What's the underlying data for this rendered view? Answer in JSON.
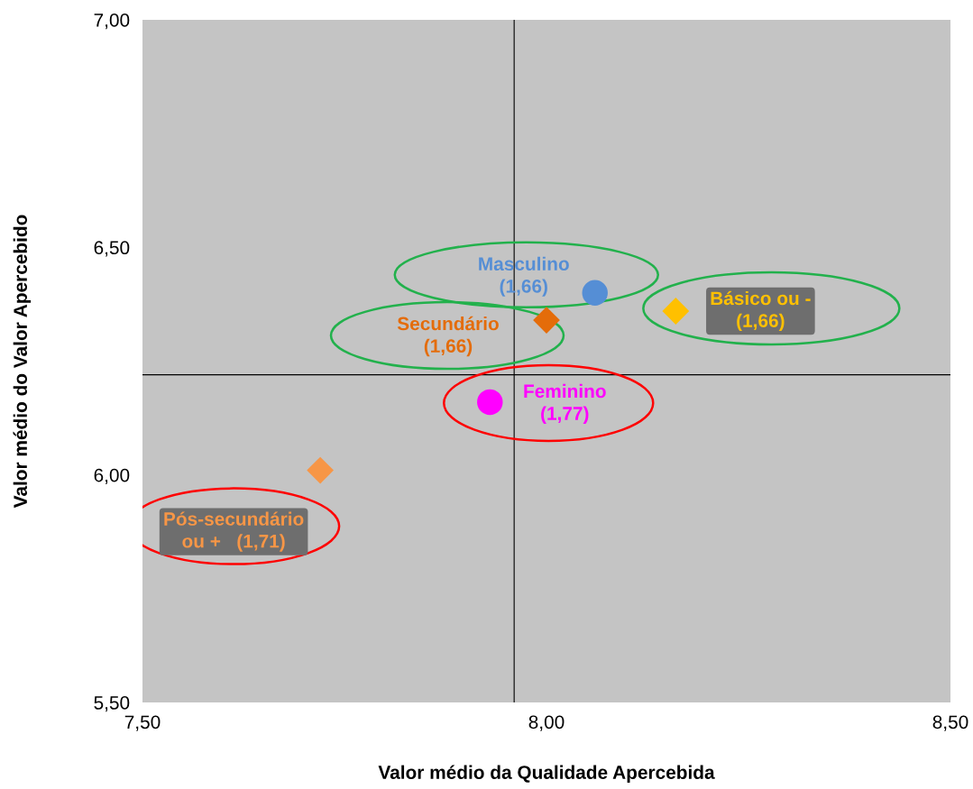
{
  "chart_data": {
    "type": "scatter",
    "xlabel": "Valor médio da Qualidade Apercebida",
    "ylabel": "Valor médio do Valor Apercebido",
    "xlim": [
      7.5,
      8.5
    ],
    "ylim": [
      5.5,
      7.0
    ],
    "xticks": [
      {
        "value": 7.5,
        "label": "7,50"
      },
      {
        "value": 8.0,
        "label": "8,00"
      },
      {
        "value": 8.5,
        "label": "8,50"
      }
    ],
    "yticks": [
      {
        "value": 5.5,
        "label": "5,50"
      },
      {
        "value": 6.0,
        "label": "6,00"
      },
      {
        "value": 6.5,
        "label": "6,50"
      },
      {
        "value": 7.0,
        "label": "7,00"
      }
    ],
    "grid": false,
    "legend": false,
    "ref_lines": [
      {
        "axis": "x",
        "value": 7.96,
        "color": "#000000"
      },
      {
        "axis": "y",
        "value": 6.22,
        "color": "#000000"
      }
    ],
    "series": [
      {
        "name": "Masculino\n(1,66)",
        "color": "#558ed5",
        "marker": "circle",
        "x": [
          8.06
        ],
        "values": [
          6.4
        ]
      },
      {
        "name": "Secundário\n(1,66)",
        "color": "#e46c0a",
        "marker": "diamond",
        "x": [
          8.0
        ],
        "values": [
          6.34
        ]
      },
      {
        "name": "Básico ou -\n(1,66)",
        "color": "#ffc000",
        "marker": "diamond",
        "x": [
          8.16
        ],
        "values": [
          6.36
        ]
      },
      {
        "name": "Feminino\n(1,77)",
        "color": "#ff00ff",
        "marker": "circle",
        "x": [
          7.93
        ],
        "values": [
          6.16
        ]
      },
      {
        "name": "Pós-secundário\nou +   (1,71)",
        "color": "#f79646",
        "marker": "diamond",
        "x": [
          7.72
        ],
        "values": [
          6.01
        ]
      }
    ]
  }
}
